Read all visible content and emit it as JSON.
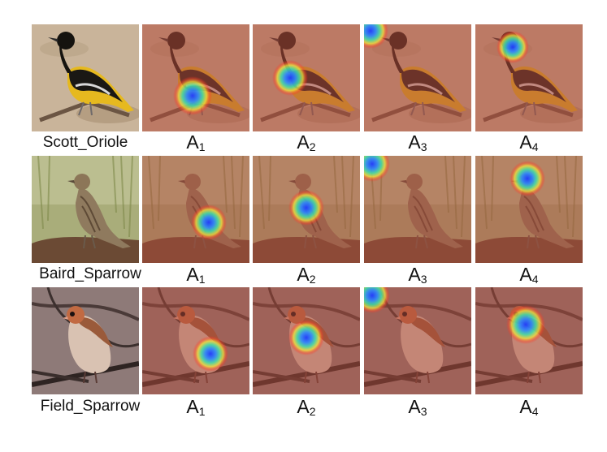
{
  "rows": [
    {
      "species": "Scott_Oriole"
    },
    {
      "species": "Baird_Sparrow"
    },
    {
      "species": "Field_Sparrow"
    }
  ],
  "attention_labels": [
    {
      "base": "A",
      "sub": "1"
    },
    {
      "base": "A",
      "sub": "2"
    },
    {
      "base": "A",
      "sub": "3"
    },
    {
      "base": "A",
      "sub": "4"
    }
  ],
  "colors": {
    "heatmap_core": "#1f3cff",
    "heatmap_mid": "#3fe0a8",
    "heatmap_outer": "#f0e53a",
    "heatmap_edge": "#ff4a2a",
    "overlay_tint": "#b04a3a"
  }
}
